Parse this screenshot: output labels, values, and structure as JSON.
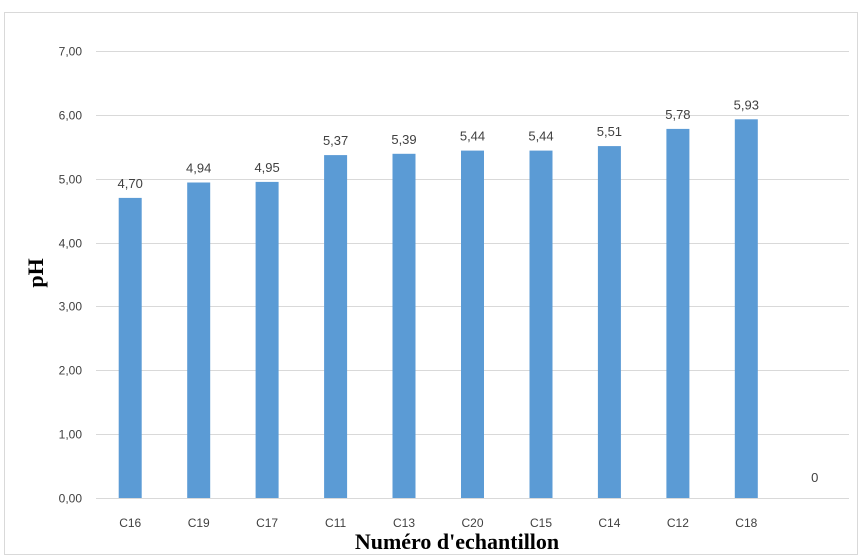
{
  "chart_data": {
    "type": "bar",
    "categories": [
      "C16",
      "C19",
      "C17",
      "C11",
      "C13",
      "C20",
      "C15",
      "C14",
      "C12",
      "C18",
      ""
    ],
    "values": [
      4.7,
      4.94,
      4.95,
      5.37,
      5.39,
      5.44,
      5.44,
      5.51,
      5.78,
      5.93,
      0
    ],
    "data_labels": [
      "4,70",
      "4,94",
      "4,95",
      "5,37",
      "5,39",
      "5,44",
      "5,44",
      "5,51",
      "5,78",
      "5,93",
      "0"
    ],
    "title": "",
    "xlabel": "Numéro d'echantillon",
    "ylabel": "pH",
    "ylim": [
      0,
      7
    ],
    "yticks": [
      0,
      1,
      2,
      3,
      4,
      5,
      6,
      7
    ],
    "ytick_labels": [
      "0,00",
      "1,00",
      "2,00",
      "3,00",
      "4,00",
      "5,00",
      "6,00",
      "7,00"
    ],
    "grid": true,
    "legend": "none",
    "bar_color": "#5b9bd5",
    "grid_color": "#d9d9d9"
  }
}
